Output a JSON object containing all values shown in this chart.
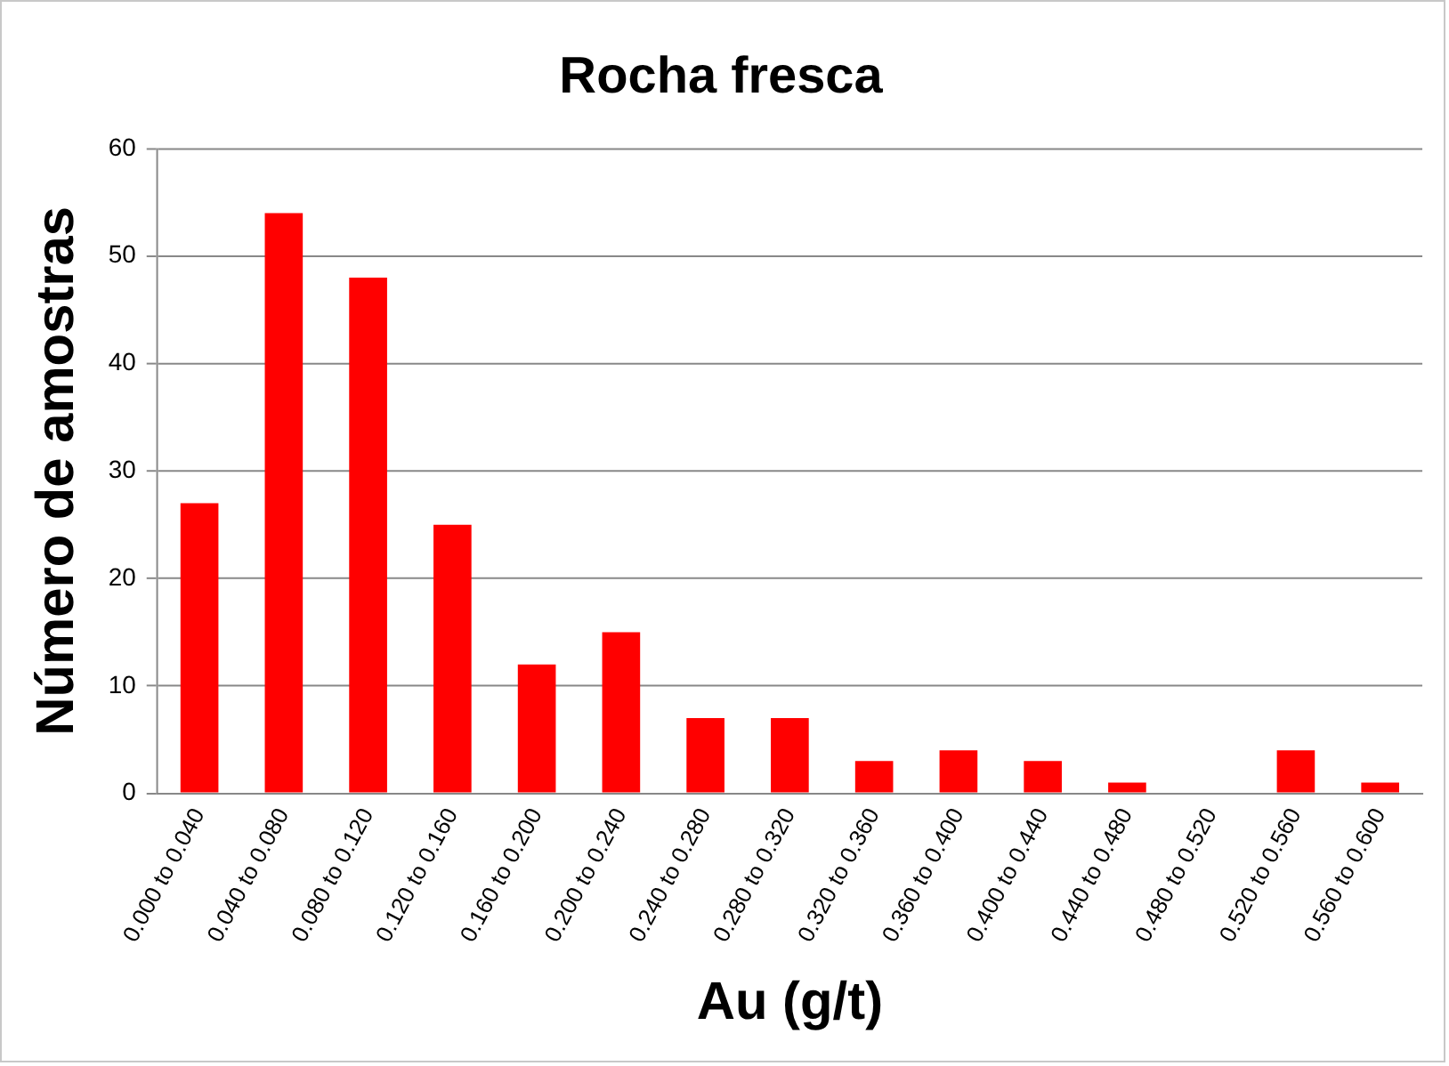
{
  "chart_data": {
    "type": "bar",
    "title": "Rocha fresca",
    "xlabel": "Au (g/t)",
    "ylabel": "Número de amostras",
    "categories": [
      "0.000 to 0.040",
      "0.040 to 0.080",
      "0.080 to 0.120",
      "0.120 to 0.160",
      "0.160 to 0.200",
      "0.200 to 0.240",
      "0.240 to 0.280",
      "0.280 to 0.320",
      "0.320 to 0.360",
      "0.360 to 0.400",
      "0.400 to 0.440",
      "0.440 to 0.480",
      "0.480 to 0.520",
      "0.520 to 0.560",
      "0.560 to 0.600"
    ],
    "values": [
      27,
      54,
      48,
      25,
      12,
      15,
      7,
      7,
      3,
      4,
      3,
      1,
      0,
      4,
      1
    ],
    "color": "#ff0000",
    "ylim": [
      0,
      60
    ],
    "yticks": [
      0,
      10,
      20,
      30,
      40,
      50,
      60
    ],
    "grid": "y",
    "legend": false
  }
}
